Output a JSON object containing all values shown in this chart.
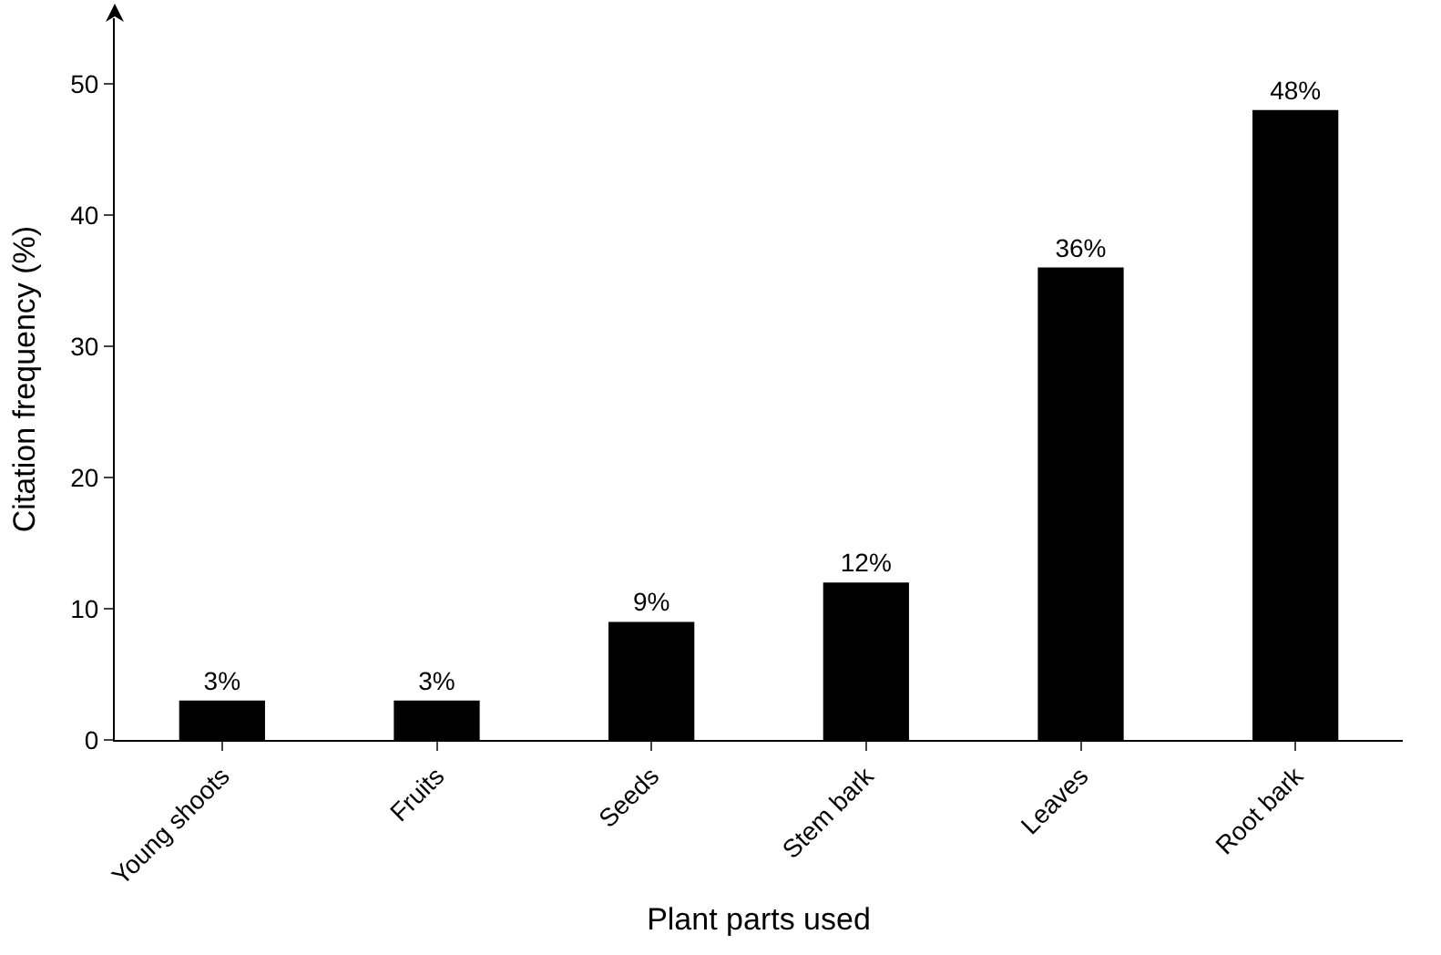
{
  "chart_data": {
    "type": "bar",
    "xlabel": "Plant parts used",
    "ylabel": "Citation frequency (%)",
    "categories": [
      "Young shoots",
      "Fruits",
      "Seeds",
      "Stem bark",
      "Leaves",
      "Root bark"
    ],
    "values": [
      3,
      3,
      9,
      12,
      36,
      48
    ],
    "value_labels": [
      "3%",
      "3%",
      "9%",
      "12%",
      "36%",
      "48%"
    ],
    "color": "#000000",
    "ylim": [
      0,
      55
    ],
    "yticks": [
      0,
      10,
      20,
      30,
      40,
      50
    ]
  }
}
